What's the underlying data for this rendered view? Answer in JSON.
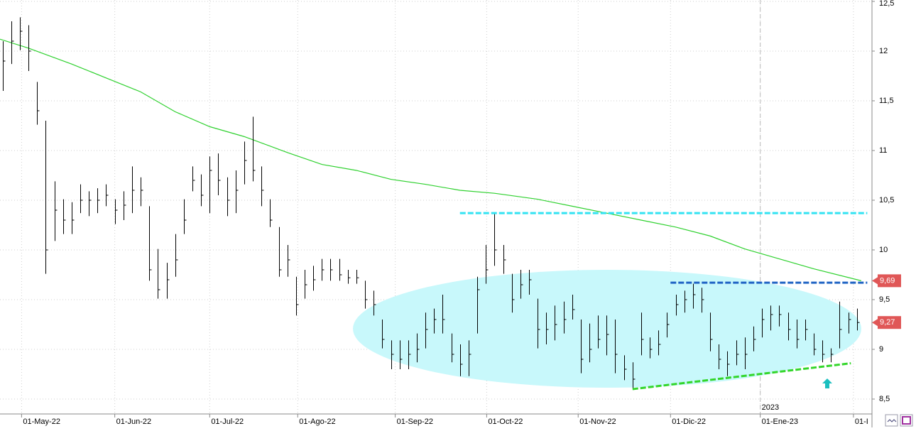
{
  "chart_data": {
    "type": "ohlc",
    "color": "#000000",
    "xlim": [
      -0.3,
      100.5
    ],
    "ylim": [
      8.35,
      12.514
    ],
    "yticks": [
      {
        "value": 8.5,
        "label": "8,5"
      },
      9,
      {
        "value": 9.5,
        "label": "9,5"
      },
      10,
      {
        "value": 10.5,
        "label": "10,5"
      },
      11,
      {
        "value": 11.5,
        "label": "11,5"
      },
      12,
      {
        "value": 12.5,
        "label": "12,5"
      }
    ],
    "xticks": [
      {
        "value": 2.2,
        "label": "01-May-22"
      },
      {
        "value": 13.0,
        "label": "01-Jun-22"
      },
      {
        "value": 24.0,
        "label": "01-Jul-22"
      },
      {
        "value": 34.2,
        "label": "01-Ago-22"
      },
      {
        "value": 45.5,
        "label": "01-Sep-22"
      },
      {
        "value": 56.1,
        "label": "01-Oct-22"
      },
      {
        "value": 66.7,
        "label": "01-Nov-22"
      },
      {
        "value": 77.4,
        "label": "01-Dic-22"
      },
      {
        "value": 87.8,
        "label": "01-Ene-23"
      },
      {
        "value": 98.6,
        "label": "01-I"
      }
    ],
    "year_marker": {
      "value": 87.8,
      "label": "2023"
    },
    "grid": true,
    "high": [
      12.1,
      12.3,
      12.34,
      12.26,
      11.69,
      11.3,
      10.69,
      10.51,
      10.48,
      10.66,
      10.59,
      10.62,
      10.66,
      10.51,
      10.59,
      10.84,
      10.73,
      10.44,
      10.01,
      9.87,
      10.16,
      10.51,
      10.84,
      10.76,
      10.94,
      10.97,
      10.73,
      10.8,
      11.09,
      11.34,
      10.84,
      10.51,
      10.23,
      10.05,
      9.73,
      9.8,
      9.84,
      9.91,
      9.91,
      9.91,
      9.8,
      9.8,
      9.69,
      9.59,
      9.3,
      9.09,
      9.09,
      9.09,
      9.16,
      9.37,
      9.41,
      9.55,
      9.16,
      9.05,
      9.09,
      9.73,
      10.05,
      10.37,
      10.05,
      9.76,
      9.8,
      9.8,
      9.51,
      9.37,
      9.44,
      9.48,
      9.55,
      9.3,
      9.26,
      9.34,
      9.34,
      9.3,
      8.94,
      8.87,
      9.37,
      9.12,
      9.19,
      9.37,
      9.55,
      9.59,
      9.66,
      9.62,
      9.37,
      9.05,
      8.98,
      9.09,
      9.12,
      9.23,
      9.41,
      9.44,
      9.44,
      9.37,
      9.3,
      9.3,
      9.16,
      9.09,
      9.01,
      9.48,
      9.37,
      9.41
    ],
    "low": [
      11.6,
      11.87,
      12.01,
      11.8,
      11.26,
      9.76,
      10.09,
      10.16,
      10.16,
      10.37,
      10.34,
      10.37,
      10.44,
      10.26,
      10.3,
      10.37,
      10.44,
      9.69,
      9.51,
      9.51,
      9.73,
      10.16,
      10.59,
      10.44,
      10.37,
      10.55,
      10.34,
      10.37,
      10.66,
      10.69,
      10.44,
      10.23,
      9.73,
      9.73,
      9.34,
      9.51,
      9.59,
      9.69,
      9.69,
      9.69,
      9.66,
      9.66,
      9.41,
      9.34,
      9.01,
      8.8,
      8.8,
      8.8,
      8.87,
      9.01,
      9.16,
      9.16,
      8.87,
      8.73,
      8.73,
      9.16,
      9.66,
      9.84,
      9.76,
      9.37,
      9.51,
      9.55,
      9.01,
      9.05,
      9.09,
      9.16,
      9.3,
      8.76,
      8.87,
      9.01,
      8.94,
      8.76,
      8.69,
      8.6,
      8.94,
      8.91,
      8.94,
      9.12,
      9.34,
      9.37,
      9.41,
      9.37,
      8.98,
      8.8,
      8.73,
      8.84,
      8.8,
      8.98,
      9.12,
      9.19,
      9.23,
      9.09,
      9.01,
      9.09,
      8.94,
      8.87,
      8.87,
      9.01,
      9.16,
      9.19
    ],
    "close": [
      11.9,
      12.1,
      12.2,
      12.0,
      11.4,
      10.0,
      10.4,
      10.3,
      10.3,
      10.5,
      10.5,
      10.5,
      10.55,
      10.4,
      10.45,
      10.6,
      10.6,
      9.8,
      9.6,
      9.7,
      9.9,
      10.3,
      10.7,
      10.55,
      10.8,
      10.7,
      10.5,
      10.6,
      10.9,
      10.8,
      10.6,
      10.3,
      9.8,
      9.9,
      9.45,
      9.65,
      9.7,
      9.8,
      9.8,
      9.75,
      9.72,
      9.72,
      9.5,
      9.45,
      9.1,
      8.95,
      8.9,
      8.95,
      9.0,
      9.2,
      9.3,
      9.3,
      8.95,
      8.85,
      8.95,
      9.6,
      9.8,
      10.0,
      9.9,
      9.5,
      9.65,
      9.7,
      9.2,
      9.2,
      9.25,
      9.3,
      9.4,
      8.9,
      9.0,
      9.1,
      9.15,
      8.95,
      8.8,
      8.7,
      9.1,
      9.0,
      9.05,
      9.25,
      9.45,
      9.5,
      9.55,
      9.5,
      9.1,
      8.9,
      8.85,
      8.95,
      8.95,
      9.1,
      9.3,
      9.35,
      9.35,
      9.2,
      9.1,
      9.2,
      9.0,
      8.95,
      8.95,
      9.2,
      9.3,
      9.27
    ],
    "moving_average": {
      "color": "#2fd12f",
      "x": [
        -0.3,
        3,
        8,
        12,
        16,
        20,
        24,
        28,
        33,
        37,
        41,
        45,
        49,
        53,
        57,
        62,
        66,
        70,
        74,
        78,
        82,
        86,
        90,
        94,
        99.5
      ],
      "values": [
        12.12,
        12.03,
        11.87,
        11.73,
        11.59,
        11.39,
        11.24,
        11.14,
        10.98,
        10.86,
        10.8,
        10.71,
        10.66,
        10.6,
        10.57,
        10.51,
        10.44,
        10.37,
        10.3,
        10.23,
        10.14,
        10.01,
        9.91,
        9.81,
        9.69
      ]
    },
    "levels": [
      {
        "color": "#33e3f2",
        "x": [
          53,
          100.2
        ],
        "values": [
          10.37,
          10.37
        ]
      },
      {
        "color": "#1f63c4",
        "x": [
          77.4,
          100.2
        ],
        "values": [
          9.67,
          9.67
        ]
      },
      {
        "color": "#33d62a",
        "x": [
          73,
          98.3
        ],
        "values": [
          8.6,
          8.86
        ]
      }
    ],
    "price_labels": [
      {
        "value": 9.69,
        "label": "9,69",
        "color": "#e05757"
      },
      {
        "value": 9.27,
        "label": "9,27",
        "color": "#e05757"
      }
    ]
  }
}
